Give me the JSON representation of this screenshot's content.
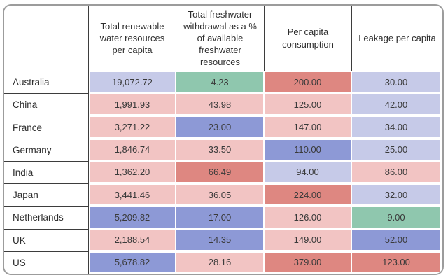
{
  "palette": {
    "lavender": "#c6cae8",
    "blue": "#8d99d6",
    "pink": "#f2c4c3",
    "red": "#de8781",
    "green": "#8fc7ae"
  },
  "chart_data": {
    "type": "heatmap",
    "title": "",
    "corner_label": "",
    "columns": [
      "Total renewable water resources per capita",
      "Total freshwater withdrawal as a % of available freshwater resources",
      "Per capita consumption",
      "Leakage per capita"
    ],
    "color_semantics": "diverging red (high/bad) to blue (low), green = best value in column",
    "rows": [
      {
        "label": "Australia",
        "values": [
          19072.72,
          4.23,
          200.0,
          30.0
        ],
        "display": [
          "19,072.72",
          "4.23",
          "200.00",
          "30.00"
        ],
        "colors": [
          "lavender",
          "green",
          "red",
          "lavender"
        ]
      },
      {
        "label": "China",
        "values": [
          1991.93,
          43.98,
          125.0,
          42.0
        ],
        "display": [
          "1,991.93",
          "43.98",
          "125.00",
          "42.00"
        ],
        "colors": [
          "pink",
          "pink",
          "pink",
          "lavender"
        ]
      },
      {
        "label": "France",
        "values": [
          3271.22,
          23.0,
          147.0,
          34.0
        ],
        "display": [
          "3,271.22",
          "23.00",
          "147.00",
          "34.00"
        ],
        "colors": [
          "pink",
          "blue",
          "pink",
          "lavender"
        ]
      },
      {
        "label": "Germany",
        "values": [
          1846.74,
          33.5,
          110.0,
          25.0
        ],
        "display": [
          "1,846.74",
          "33.50",
          "110.00",
          "25.00"
        ],
        "colors": [
          "pink",
          "pink",
          "blue",
          "lavender"
        ]
      },
      {
        "label": "India",
        "values": [
          1362.2,
          66.49,
          94.0,
          86.0
        ],
        "display": [
          "1,362.20",
          "66.49",
          "94.00",
          "86.00"
        ],
        "colors": [
          "pink",
          "red",
          "lavender",
          "pink"
        ]
      },
      {
        "label": "Japan",
        "values": [
          3441.46,
          36.05,
          224.0,
          32.0
        ],
        "display": [
          "3,441.46",
          "36.05",
          "224.00",
          "32.00"
        ],
        "colors": [
          "pink",
          "pink",
          "red",
          "lavender"
        ]
      },
      {
        "label": "Netherlands",
        "values": [
          5209.82,
          17.0,
          126.0,
          9.0
        ],
        "display": [
          "5,209.82",
          "17.00",
          "126.00",
          "9.00"
        ],
        "colors": [
          "blue",
          "blue",
          "pink",
          "green"
        ]
      },
      {
        "label": "UK",
        "values": [
          2188.54,
          14.35,
          149.0,
          52.0
        ],
        "display": [
          "2,188.54",
          "14.35",
          "149.00",
          "52.00"
        ],
        "colors": [
          "pink",
          "blue",
          "pink",
          "blue"
        ]
      },
      {
        "label": "US",
        "values": [
          5678.82,
          28.16,
          379.0,
          123.0
        ],
        "display": [
          "5,678.82",
          "28.16",
          "379.00",
          "123.00"
        ],
        "colors": [
          "blue",
          "pink",
          "red",
          "red"
        ]
      }
    ]
  }
}
